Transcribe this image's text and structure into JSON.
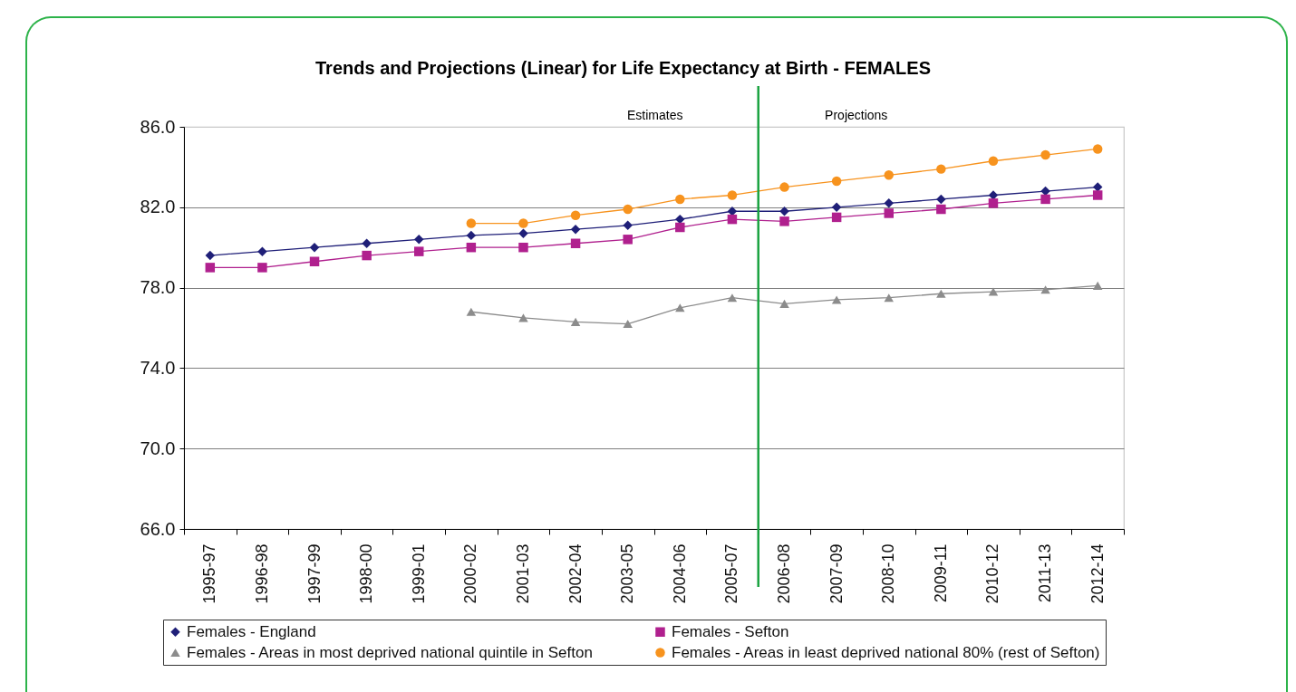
{
  "chart_data": {
    "type": "line",
    "title": "Trends and Projections (Linear) for Life Expectancy at Birth - FEMALES",
    "categories": [
      "1995-97",
      "1996-98",
      "1997-99",
      "1998-00",
      "1999-01",
      "2000-02",
      "2001-03",
      "2002-04",
      "2003-05",
      "2004-06",
      "2005-07",
      "2006-08",
      "2007-09",
      "2008-10",
      "2009-11",
      "2010-12",
      "2011-13",
      "2012-14"
    ],
    "series": [
      {
        "name": "Females - England",
        "color": "#1f1f78",
        "marker": "diamond",
        "values": [
          79.6,
          79.8,
          80.0,
          80.2,
          80.4,
          80.6,
          80.7,
          80.9,
          81.1,
          81.4,
          81.8,
          81.8,
          82.0,
          82.2,
          82.4,
          82.6,
          82.8,
          83.0
        ]
      },
      {
        "name": "Females - Sefton",
        "color": "#b0208e",
        "marker": "square",
        "values": [
          79.0,
          79.0,
          79.3,
          79.6,
          79.8,
          80.0,
          80.0,
          80.2,
          80.4,
          81.0,
          81.4,
          81.3,
          81.5,
          81.7,
          81.9,
          82.2,
          82.4,
          82.6
        ]
      },
      {
        "name": "Females - Areas  in most deprived national quintile in Sefton",
        "color": "#8c8c8c",
        "marker": "triangle",
        "values": [
          null,
          null,
          null,
          null,
          null,
          76.8,
          76.5,
          76.3,
          76.2,
          77.0,
          77.5,
          77.2,
          77.4,
          77.5,
          77.7,
          77.8,
          77.9,
          78.1
        ]
      },
      {
        "name": "Females - Areas in least deprived national 80% (rest of Sefton)",
        "color": "#f7931e",
        "marker": "circle",
        "values": [
          null,
          null,
          null,
          null,
          null,
          81.2,
          81.2,
          81.6,
          81.9,
          82.4,
          82.6,
          83.0,
          83.3,
          83.6,
          83.9,
          84.3,
          84.6,
          84.9
        ]
      }
    ],
    "ylim": [
      66,
      86
    ],
    "yticks": [
      {
        "value": 66,
        "label": "66.0"
      },
      {
        "value": 70,
        "label": "70.0"
      },
      {
        "value": 74,
        "label": "74.0"
      },
      {
        "value": 78,
        "label": "78.0"
      },
      {
        "value": 82,
        "label": "82.0"
      },
      {
        "value": 86,
        "label": "86.0"
      }
    ],
    "grid": "y",
    "legend": "bottom",
    "ref_lines": [
      {
        "axis": "x",
        "value": "2006-08",
        "color": "#1aa340"
      }
    ],
    "annotations": [
      "Estimates",
      "Projections"
    ]
  }
}
